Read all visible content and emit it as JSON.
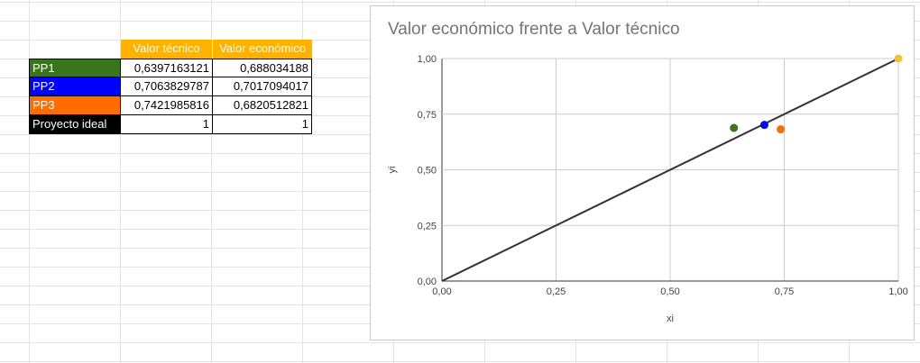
{
  "table": {
    "headers": [
      "Valor técnico",
      "Valor económico"
    ],
    "rows": [
      {
        "label": "PP1",
        "color": "#38761d",
        "tecnico": "0,6397163121",
        "economico": "0,688034188"
      },
      {
        "label": "PP2",
        "color": "#0000ff",
        "tecnico": "0,7063829787",
        "economico": "0,7017094017"
      },
      {
        "label": "PP3",
        "color": "#ff6d01",
        "tecnico": "0,7421985816",
        "economico": "0,6820512821"
      },
      {
        "label": "Proyecto ideal",
        "color": "#000000",
        "tecnico": "1",
        "economico": "1"
      }
    ]
  },
  "chart_data": {
    "type": "scatter",
    "title": "Valor económico frente a Valor técnico",
    "xlabel": "xi",
    "ylabel": "yi",
    "xlim": [
      0,
      1
    ],
    "ylim": [
      0,
      1
    ],
    "xticks": [
      "0,00",
      "0,25",
      "0,50",
      "0,75",
      "1,00"
    ],
    "yticks": [
      "0,00",
      "0,25",
      "0,50",
      "0,75",
      "1,00"
    ],
    "grid": true,
    "legend": "none",
    "points": [
      {
        "name": "PP1",
        "x": 0.6397163121,
        "y": 0.688034188,
        "color": "#38761d"
      },
      {
        "name": "PP2",
        "x": 0.7063829787,
        "y": 0.7017094017,
        "color": "#0000ff"
      },
      {
        "name": "PP3",
        "x": 0.7421985816,
        "y": 0.6820512821,
        "color": "#ff6d01"
      },
      {
        "name": "Proyecto ideal",
        "x": 1,
        "y": 1,
        "color": "#f1c232"
      }
    ],
    "line": {
      "x": [
        0,
        1
      ],
      "y": [
        0,
        1
      ],
      "color": "#333333"
    }
  }
}
